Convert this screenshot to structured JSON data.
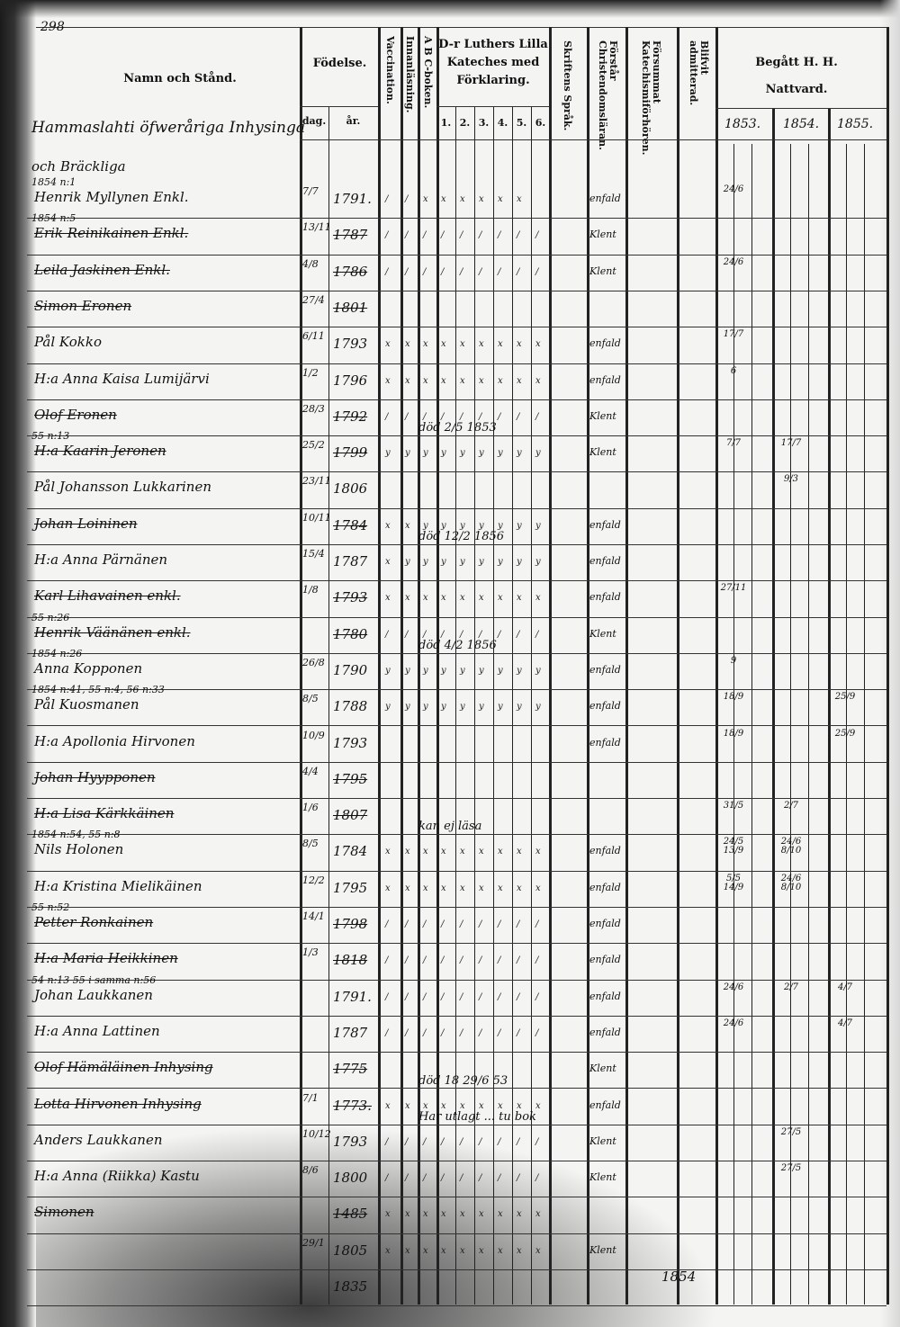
{
  "page_number": "298",
  "header": {
    "name_col": "Namn och Stånd.",
    "birth": "Födelse.",
    "birth_day": "dag.",
    "birth_year": "år.",
    "vaccination": "Vaccination.",
    "reading": "Innanläsning.",
    "abc": "A B C-boken.",
    "catechism": "D-r Luthers Lilla Kateches med Förklaring.",
    "catechism_parts": [
      "1.",
      "2.",
      "3.",
      "4.",
      "5.",
      "6."
    ],
    "scripture": "Skriftens Språk.",
    "christianity": "Förstår Christendomsläran.",
    "neglected": "Försummat Katechismiförhören.",
    "admitted": "Blifvit admitterad.",
    "communion": "Begått H. H. Nattvard.",
    "years": [
      "1853.",
      "1854.",
      "1855."
    ]
  },
  "section_title": "Hammaslahti öfweråriga Inhysinga",
  "section_subtitle": "och Bräckliga",
  "rows": [
    {
      "name": "Henrik Myllynen Enkl.",
      "pre": "1854 n:1",
      "dag": "7/7",
      "ar": "1791.",
      "marks": "//xxxxxx",
      "understanding": "enfald",
      "c1853": "24/6",
      "c1854": "",
      "c1855": "",
      "struck": false
    },
    {
      "name": "Erik Reinikainen Enkl.",
      "pre": "1854 n:5",
      "dag": "13/11",
      "ar": "1787",
      "marks": "/////////",
      "understanding": "Klent",
      "c1853": "",
      "c1854": "",
      "c1855": "",
      "struck": true
    },
    {
      "name": "Leila Jaskinen Enkl.",
      "pre": "",
      "dag": "4/8",
      "ar": "1786",
      "marks": "/////////",
      "understanding": "Klent",
      "c1853": "24/6",
      "c1854": "",
      "c1855": "",
      "struck": true
    },
    {
      "name": "Simon Eronen",
      "pre": "",
      "dag": "27/4",
      "ar": "1801",
      "marks": "",
      "understanding": "",
      "c1853": "",
      "c1854": "",
      "c1855": "",
      "struck": true
    },
    {
      "name": "Pål Kokko",
      "pre": "",
      "dag": "6/11",
      "ar": "1793",
      "marks": "xxxxxxxxx",
      "understanding": "enfald",
      "c1853": "17/7",
      "c1854": "",
      "c1855": "",
      "struck": false
    },
    {
      "name": "H:a Anna Kaisa Lumijärvi",
      "pre": "",
      "dag": "1/2",
      "ar": "1796",
      "marks": "xxxxxxxxx",
      "understanding": "enfald",
      "c1853": "6",
      "c1854": "",
      "c1855": "",
      "struck": false
    },
    {
      "name": "Olof Eronen",
      "pre": "",
      "dag": "28/3",
      "ar": "1792",
      "marks": "/////////",
      "understanding": "Klent",
      "c1853": "",
      "c1854": "",
      "c1855": "",
      "struck": true
    },
    {
      "name": "H:a Kaarin Jeronen",
      "pre": "55 n:13",
      "dag": "25/2",
      "ar": "1799",
      "marks": "yyyyyyyyy",
      "understanding": "Klent",
      "c1853": "7/7",
      "c1854": "17/7",
      "c1855": "",
      "struck": true
    },
    {
      "name": "Pål Johansson Lukkarinen",
      "pre": "",
      "dag": "23/11",
      "ar": "1806",
      "marks": "",
      "understanding": "",
      "c1853": "",
      "c1854": "9/3",
      "c1855": "",
      "struck": false
    },
    {
      "name": "Johan Loininen",
      "pre": "",
      "dag": "10/11",
      "ar": "1784",
      "marks": "xxyyyyyyy",
      "understanding": "enfald",
      "c1853": "",
      "c1854": "",
      "c1855": "",
      "struck": true
    },
    {
      "name": "H:a Anna Pärnänen",
      "pre": "",
      "dag": "15/4",
      "ar": "1787",
      "marks": "xyyyyyyyy",
      "understanding": "enfald",
      "c1853": "",
      "c1854": "",
      "c1855": "",
      "struck": false
    },
    {
      "name": "Karl Lihavainen enkl.",
      "pre": "",
      "dag": "1/8",
      "ar": "1793",
      "marks": "xxxxxxxxx",
      "understanding": "enfald",
      "c1853": "27/11",
      "c1854": "",
      "c1855": "",
      "struck": true
    },
    {
      "name": "Henrik Väänänen enkl.",
      "pre": "55 n:26",
      "dag": "",
      "ar": "1780",
      "marks": "/////////",
      "understanding": "Klent",
      "c1853": "",
      "c1854": "",
      "c1855": "",
      "struck": true
    },
    {
      "name": "Anna Kopponen",
      "pre": "1854 n:26",
      "dag": "26/8",
      "ar": "1790",
      "marks": "yyyyyyyyy",
      "understanding": "enfald",
      "c1853": "9",
      "c1854": "",
      "c1855": "",
      "struck": false
    },
    {
      "name": "Pål Kuosmanen",
      "pre": "1854 n:41, 55 n:4, 56 n:33",
      "dag": "8/5",
      "ar": "1788",
      "marks": "yyyyyyyyy",
      "understanding": "enfald",
      "c1853": "18/9",
      "c1854": "",
      "c1855": "25/9",
      "struck": false
    },
    {
      "name": "H:a Apollonia Hirvonen",
      "pre": "",
      "dag": "10/9",
      "ar": "1793",
      "marks": "",
      "understanding": "enfald",
      "c1853": "18/9",
      "c1854": "",
      "c1855": "25/9",
      "struck": false
    },
    {
      "name": "Johan Hyypponen",
      "pre": "",
      "dag": "4/4",
      "ar": "1795",
      "marks": "",
      "understanding": "",
      "c1853": "",
      "c1854": "",
      "c1855": "",
      "struck": true
    },
    {
      "name": "H:a Lisa Kärkkäinen",
      "pre": "",
      "dag": "1/6",
      "ar": "1807",
      "marks": "",
      "understanding": "",
      "c1853": "31/5",
      "c1854": "2/7",
      "c1855": "",
      "struck": true
    },
    {
      "name": "Nils Holonen",
      "pre": "1854 n:54, 55 n:8",
      "dag": "8/5",
      "ar": "1784",
      "marks": "xxxxxxxxx",
      "understanding": "enfald",
      "c1853": "24/5 13/9",
      "c1854": "24/6 8/10",
      "c1855": "",
      "struck": false
    },
    {
      "name": "H:a Kristina Mielikäinen",
      "pre": "",
      "dag": "12/2",
      "ar": "1795",
      "marks": "xxxxxxxxx",
      "understanding": "enfald",
      "c1853": "5/5 14/9",
      "c1854": "24/6 8/10",
      "c1855": "",
      "struck": false
    },
    {
      "name": "Petter Ronkainen",
      "pre": "55 n:52",
      "dag": "14/1",
      "ar": "1798",
      "marks": "/////////",
      "understanding": "enfald",
      "c1853": "",
      "c1854": "",
      "c1855": "",
      "struck": true
    },
    {
      "name": "H:a Maria Heikkinen",
      "pre": "",
      "dag": "1/3",
      "ar": "1818",
      "marks": "/////////",
      "understanding": "enfald",
      "c1853": "",
      "c1854": "",
      "c1855": "",
      "struck": true
    },
    {
      "name": "Johan Laukkanen",
      "pre": "54 n:13 55 i samma n:56",
      "dag": "",
      "ar": "1791.",
      "marks": "/////////",
      "understanding": "enfald",
      "c1853": "24/6",
      "c1854": "2/7",
      "c1855": "4/7",
      "struck": false
    },
    {
      "name": "H:a Anna Lattinen",
      "pre": "",
      "dag": "",
      "ar": "1787",
      "marks": "/////////",
      "understanding": "enfald",
      "c1853": "24/6",
      "c1854": "",
      "c1855": "4/7",
      "struck": false
    },
    {
      "name": "Olof Hämäläinen Inhysing",
      "pre": "",
      "dag": "",
      "ar": "1775",
      "marks": "",
      "understanding": "Klent",
      "c1853": "",
      "c1854": "",
      "c1855": "",
      "struck": true
    },
    {
      "name": "Lotta Hirvonen Inhysing",
      "pre": "",
      "dag": "7/1",
      "ar": "1773.",
      "marks": "xxxxxxxxx",
      "understanding": "enfald",
      "c1853": "",
      "c1854": "",
      "c1855": "",
      "struck": true
    },
    {
      "name": "Anders Laukkanen",
      "pre": "",
      "dag": "10/12",
      "ar": "1793",
      "marks": "/////////",
      "understanding": "Klent",
      "c1853": "",
      "c1854": "27/5",
      "c1855": "",
      "struck": false
    },
    {
      "name": "H:a Anna (Riikka) Kastu",
      "pre": "",
      "dag": "8/6",
      "ar": "1800",
      "marks": "/////////",
      "understanding": "Klent",
      "c1853": "",
      "c1854": "27/5",
      "c1855": "",
      "struck": false
    },
    {
      "name": "Simonen",
      "pre": "",
      "dag": "",
      "ar": "1485",
      "marks": "xxxxxxxxx",
      "understanding": "",
      "c1853": "",
      "c1854": "",
      "c1855": "",
      "struck": true
    },
    {
      "name": "",
      "pre": "",
      "dag": "29/1",
      "ar": "1805",
      "marks": "xxxxxxxxx",
      "understanding": "Klent",
      "c1853": "",
      "c1854": "",
      "c1855": "",
      "struck": false
    },
    {
      "name": "",
      "pre": "",
      "dag": "",
      "ar": "1835",
      "marks": "",
      "understanding": "",
      "c1853": "",
      "c1854": "",
      "c1855": "",
      "struck": false
    }
  ],
  "notes": [
    {
      "row": 6,
      "text": "död 2/5 1853"
    },
    {
      "row": 9,
      "text": "död 12/2 1856"
    },
    {
      "row": 12,
      "text": "död 4/2 1856"
    },
    {
      "row": 17,
      "text": "kan ej läsa"
    },
    {
      "row": 24,
      "text": "död 18 29/6 53"
    },
    {
      "row": 25,
      "text": "Har utlagt ... tu bok"
    }
  ],
  "footer_year": "1854"
}
